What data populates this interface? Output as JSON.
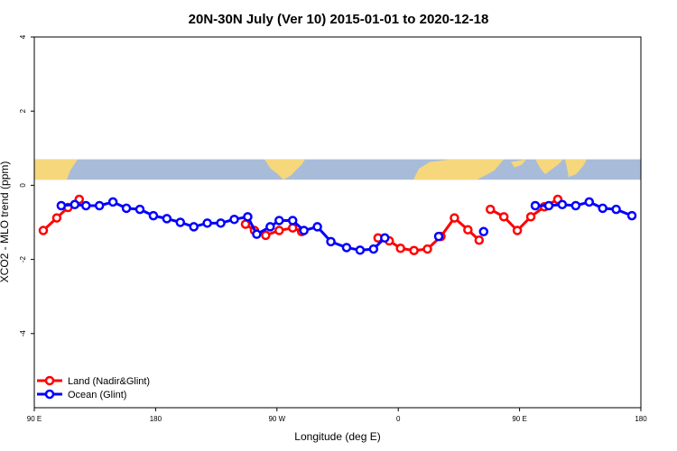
{
  "chart_data": {
    "type": "line",
    "title": "20N-30N July (Ver 10)   2015-01-01 to 2020-12-18",
    "xlabel": "Longitude (deg E)",
    "ylabel": "XCO2 - MLO trend (ppm)",
    "xlim": [
      -90,
      180
    ],
    "ylim": [
      -6,
      4
    ],
    "x_ticks": [
      {
        "value": -90,
        "label": "90 E"
      },
      {
        "value": -36,
        "label": "180"
      },
      {
        "value": 18,
        "label": "90 W"
      },
      {
        "value": 72,
        "label": "0"
      },
      {
        "value": 126,
        "label": "90 E"
      },
      {
        "value": 180,
        "label": "180"
      }
    ],
    "y_ticks": [
      {
        "value": -4,
        "label": "-4"
      },
      {
        "value": -2,
        "label": "-2"
      },
      {
        "value": 0,
        "label": "0"
      },
      {
        "value": 2,
        "label": "2"
      },
      {
        "value": 4,
        "label": "4"
      }
    ],
    "legend_position": "bottom-left",
    "map_strip": {
      "y_bottom": 0.15,
      "y_top": 0.7,
      "ocean_color": "#a8bcd9",
      "land_color": "#f6d77c"
    },
    "series": [
      {
        "name": "Land (Nadir&Glint)",
        "color": "#ff0000",
        "segments": [
          [
            [
              -86,
              -1.22
            ],
            [
              -80,
              -0.88
            ],
            [
              -75,
              -0.6
            ],
            [
              -70,
              -0.38
            ]
          ],
          [
            [
              4,
              -1.05
            ],
            [
              8,
              -1.22
            ],
            [
              13,
              -1.35
            ],
            [
              19,
              -1.22
            ],
            [
              25,
              -1.15
            ],
            [
              29,
              -1.25
            ]
          ],
          [
            [
              63,
              -1.42
            ],
            [
              68,
              -1.5
            ],
            [
              73,
              -1.7
            ],
            [
              79,
              -1.76
            ],
            [
              85,
              -1.72
            ],
            [
              91,
              -1.38
            ],
            [
              97,
              -0.88
            ],
            [
              103,
              -1.2
            ],
            [
              108,
              -1.48
            ]
          ],
          [
            [
              113,
              -0.65
            ],
            [
              119,
              -0.85
            ],
            [
              125,
              -1.22
            ],
            [
              131,
              -0.85
            ],
            [
              137,
              -0.58
            ],
            [
              143,
              -0.38
            ]
          ]
        ]
      },
      {
        "name": "Ocean (Glint)",
        "color": "#0000ff",
        "segments": [
          [
            [
              -78,
              -0.55
            ],
            [
              -72,
              -0.52
            ],
            [
              -67,
              -0.55
            ],
            [
              -61,
              -0.55
            ],
            [
              -55,
              -0.45
            ],
            [
              -49,
              -0.62
            ],
            [
              -43,
              -0.65
            ],
            [
              -37,
              -0.82
            ],
            [
              -31,
              -0.9
            ],
            [
              -25,
              -1.0
            ],
            [
              -19,
              -1.12
            ],
            [
              -13,
              -1.02
            ],
            [
              -7,
              -1.02
            ],
            [
              -1,
              -0.92
            ],
            [
              5,
              -0.85
            ],
            [
              9,
              -1.32
            ],
            [
              15,
              -1.12
            ],
            [
              19,
              -0.95
            ],
            [
              25,
              -0.95
            ],
            [
              30,
              -1.22
            ],
            [
              36,
              -1.12
            ],
            [
              42,
              -1.52
            ],
            [
              49,
              -1.68
            ],
            [
              55,
              -1.75
            ],
            [
              61,
              -1.72
            ],
            [
              66,
              -1.42
            ]
          ],
          [
            [
              90,
              -1.38
            ]
          ],
          [
            [
              110,
              -1.25
            ]
          ],
          [
            [
              133,
              -0.55
            ],
            [
              139,
              -0.55
            ],
            [
              145,
              -0.52
            ],
            [
              151,
              -0.55
            ],
            [
              157,
              -0.45
            ],
            [
              163,
              -0.62
            ],
            [
              169,
              -0.65
            ],
            [
              176,
              -0.82
            ]
          ]
        ]
      }
    ]
  }
}
